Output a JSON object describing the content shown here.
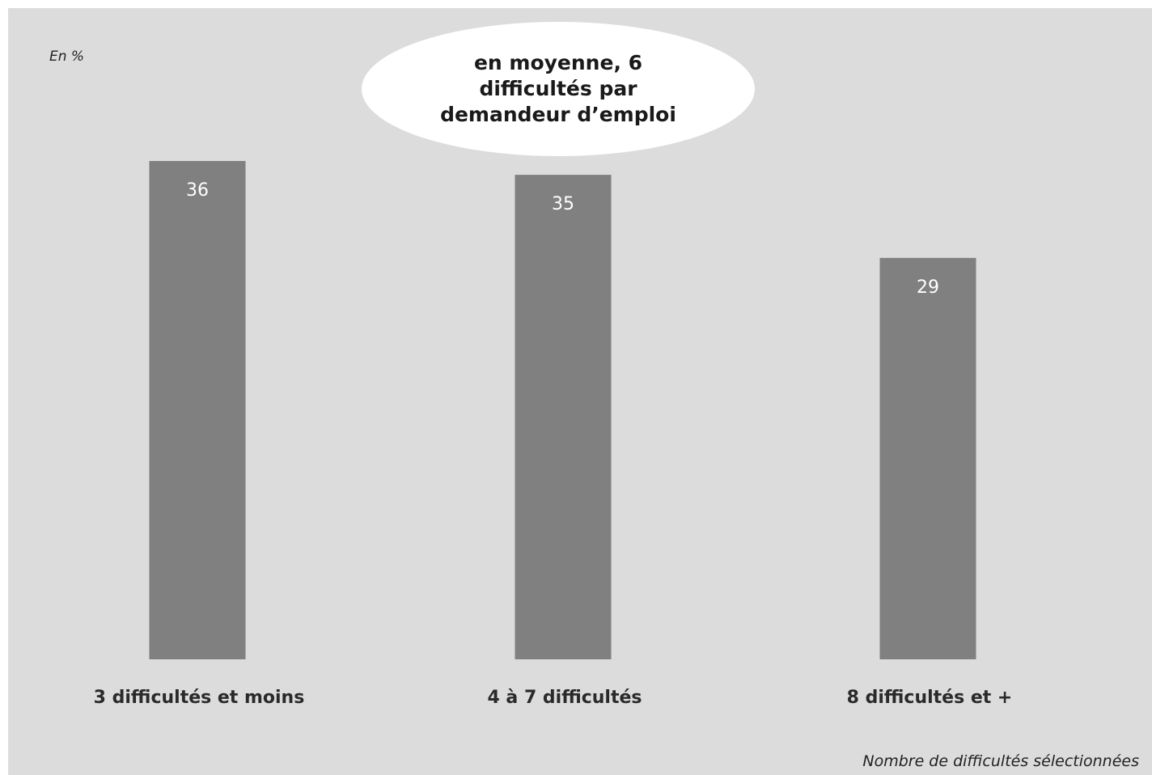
{
  "chart_data": {
    "type": "bar",
    "unit_label": "En %",
    "xlabel": "Nombre de difficultés sélectionnées",
    "categories": [
      "3 difficultés et moins",
      "4 à 7 difficultés",
      "8 difficultés et +"
    ],
    "values": [
      36,
      35,
      29
    ],
    "data_labels": [
      "36",
      "35",
      "29"
    ],
    "callout": "en moyenne, 6 difficultés par demandeur d’emploi",
    "ylim": [
      0,
      36
    ],
    "grid": false,
    "legend": "none",
    "colors": {
      "bar": "#808080",
      "background": "#dcdcdc",
      "value_label": "#ffffff",
      "callout_fill": "#ffffff"
    }
  }
}
